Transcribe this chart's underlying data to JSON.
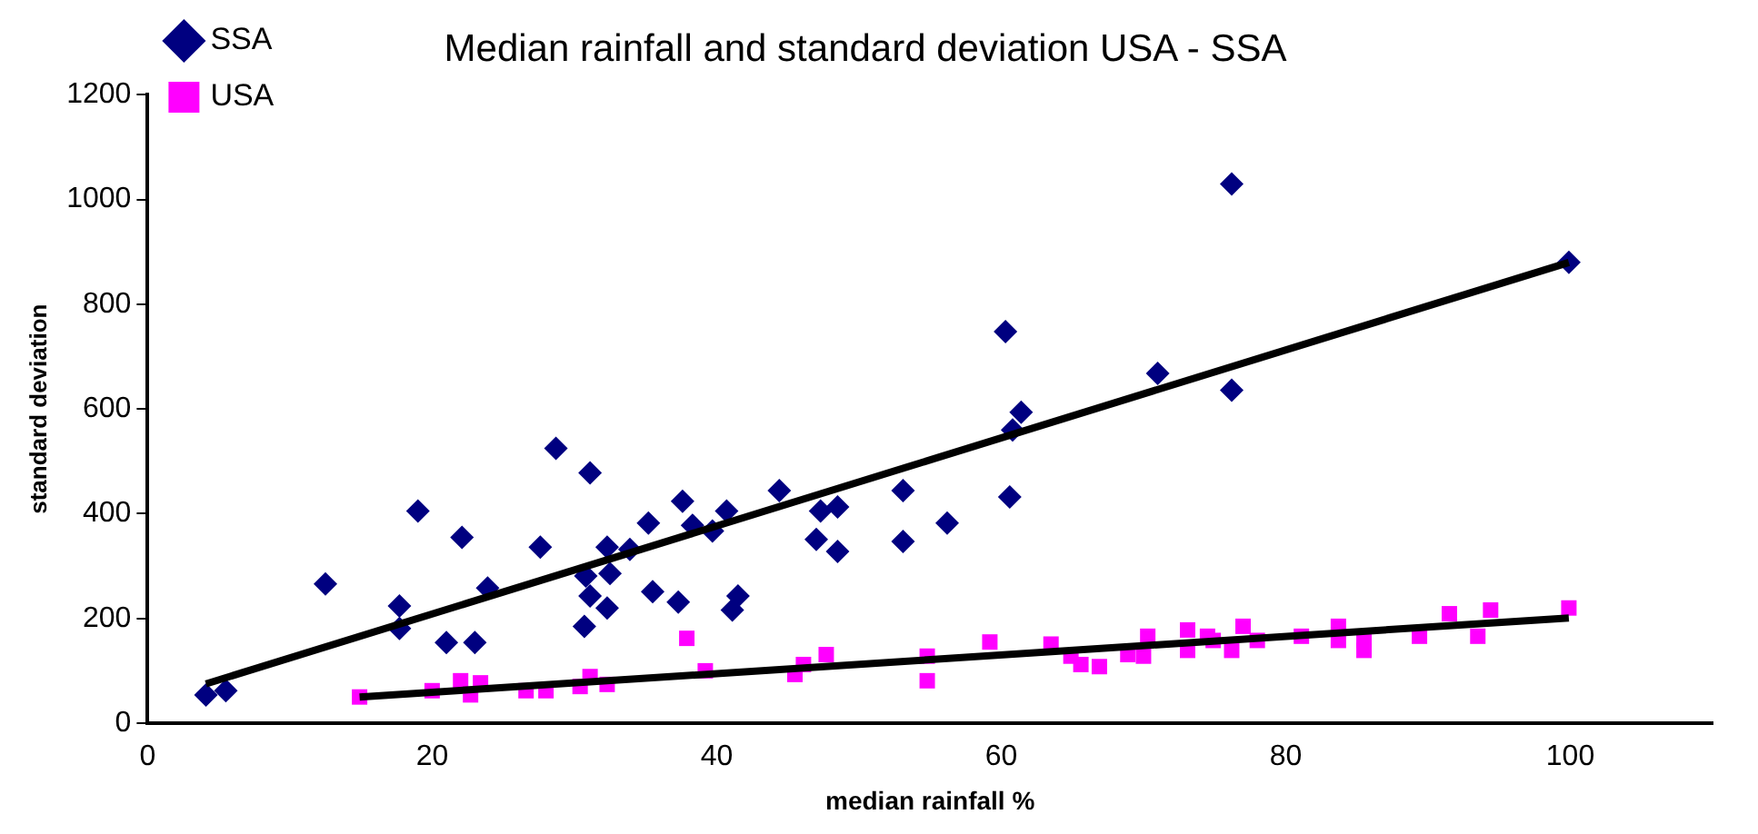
{
  "chart_data": {
    "type": "scatter",
    "title": "Median rainfall and standard deviation USA - SSA",
    "xlabel": "median rainfall %",
    "ylabel": "standard deviation",
    "xlim": [
      0,
      110
    ],
    "xticks": [
      0,
      20,
      40,
      60,
      80,
      100
    ],
    "ylim": [
      0,
      1200
    ],
    "yticks": [
      0,
      200,
      400,
      600,
      800,
      1000,
      1200
    ],
    "grid": false,
    "legend": "top left",
    "series": [
      {
        "name": "SSA",
        "color": "#000080",
        "marker": "diamond",
        "x": [
          4.1,
          5.5,
          12.5,
          17.7,
          17.7,
          19,
          22.1,
          21,
          23,
          23.9,
          27.6,
          28.7,
          31.1,
          30.8,
          31.1,
          30.7,
          32.3,
          32.5,
          32.3,
          33.9,
          35.2,
          35.5,
          37.3,
          37.6,
          38.3,
          39.7,
          40.7,
          41.5,
          41.1,
          44.4,
          47.3,
          48.5,
          47,
          48.5,
          53.1,
          53.1,
          56.2,
          60.6,
          60.3,
          60.8,
          61.4,
          71,
          76.2,
          76.2,
          99.9
        ],
        "values": [
          54,
          62,
          266,
          224,
          181,
          405,
          355,
          154,
          154,
          258,
          336,
          525,
          478,
          281,
          243,
          185,
          336,
          286,
          220,
          332,
          382,
          251,
          231,
          424,
          378,
          367,
          405,
          243,
          216,
          444,
          405,
          413,
          351,
          328,
          444,
          347,
          382,
          432,
          748,
          560,
          594,
          668,
          636,
          1030,
          880
        ]
      },
      {
        "name": "USA",
        "color": "#ff00ff",
        "marker": "square",
        "x": [
          14.9,
          20,
          22,
          22.7,
          23.4,
          26.6,
          28,
          30.4,
          31.1,
          32.3,
          37.9,
          39.2,
          45.5,
          46.1,
          47.7,
          54.8,
          54.8,
          59.2,
          63.5,
          64.9,
          65.6,
          66.9,
          68.9,
          70,
          70.3,
          73.1,
          73.1,
          74.9,
          74.5,
          76.2,
          77,
          78,
          81.1,
          83.7,
          83.7,
          85.5,
          85.5,
          89.4,
          91.5,
          93.5,
          94.4,
          99.9
        ],
        "values": [
          50,
          62,
          81,
          54,
          77,
          62,
          62,
          70,
          89,
          74,
          162,
          100,
          93,
          112,
          131,
          128,
          81,
          155,
          151,
          128,
          112,
          108,
          131,
          128,
          166,
          178,
          139,
          158,
          166,
          139,
          185,
          158,
          166,
          185,
          158,
          158,
          139,
          166,
          209,
          166,
          216,
          220
        ]
      },
      {
        "type": "line",
        "color": "#000000",
        "marker": "none",
        "x": [
          4.1,
          99.9
        ],
        "values": [
          75,
          880
        ]
      },
      {
        "type": "line",
        "color": "#000000",
        "marker": "none",
        "x": [
          14.9,
          99.9
        ],
        "values": [
          50,
          201
        ]
      }
    ]
  }
}
